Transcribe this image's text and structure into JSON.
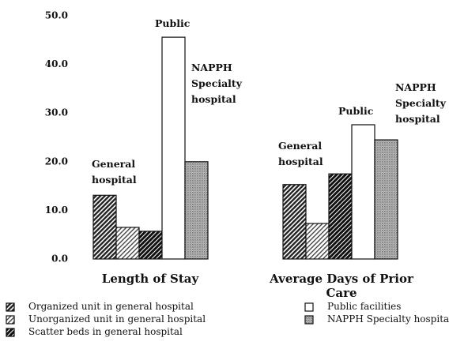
{
  "chart_data": {
    "type": "bar",
    "categories": [
      "Length of Stay",
      "Average Days of Prior Care"
    ],
    "series": [
      {
        "name": "Organized unit in general hospital",
        "color": "#222222",
        "pattern": "hatch-dense",
        "values": [
          13.1,
          15.3
        ]
      },
      {
        "name": "Unorganized unit in general hospital",
        "color": "#444444",
        "pattern": "hatch-light",
        "values": [
          6.5,
          7.3
        ]
      },
      {
        "name": "Scatter beds in general hospital",
        "color": "#111111",
        "pattern": "hatch-dark",
        "values": [
          5.7,
          17.5
        ]
      },
      {
        "name": "Public facilities",
        "color": "#ffffff",
        "pattern": "none",
        "values": [
          45.6,
          27.6
        ]
      },
      {
        "name": "NAPPH Specialty hospital",
        "color": "#777777",
        "pattern": "stipple",
        "values": [
          20.0,
          24.5
        ]
      }
    ],
    "annotations": [
      "General hospital",
      "Public",
      "NAPPH Specialty hospital",
      "General hospital",
      "Public",
      "NAPPH Specialty hospital"
    ],
    "ylim": [
      0,
      50
    ],
    "yticks": [
      {
        "value": 0,
        "label": "0.0"
      },
      {
        "value": 10,
        "label": "10.0"
      },
      {
        "value": 20,
        "label": "20.0"
      },
      {
        "value": 30,
        "label": "30.0"
      },
      {
        "value": 40,
        "label": "40.0"
      },
      {
        "value": 50,
        "label": "50.0"
      }
    ],
    "grid": false
  }
}
